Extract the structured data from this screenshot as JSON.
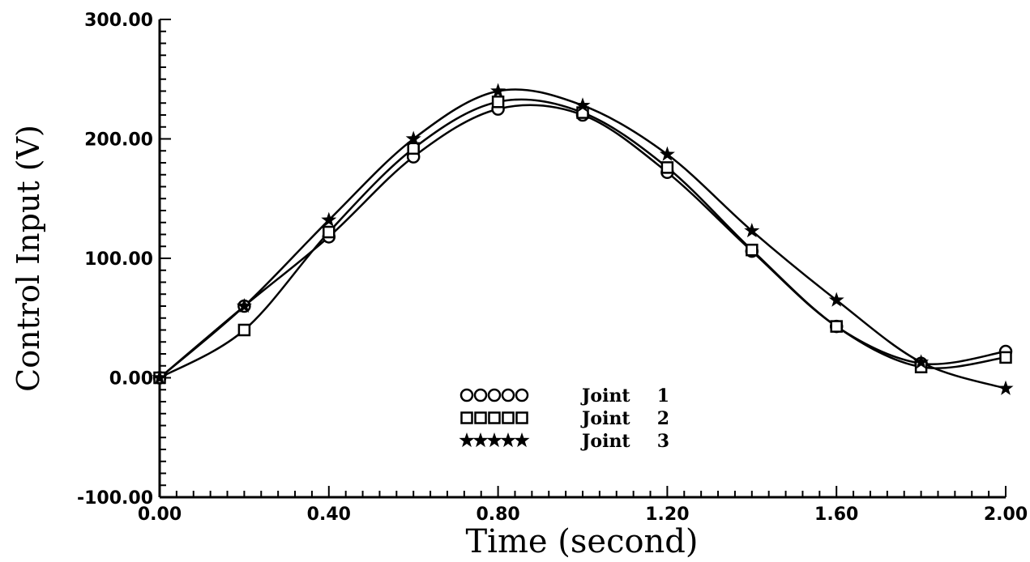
{
  "chart_data": {
    "type": "line",
    "title": "",
    "xlabel": "Time (second)",
    "ylabel": "Control Input (V)",
    "xlim": [
      0,
      2
    ],
    "ylim": [
      -100,
      300
    ],
    "x_ticks": [
      0,
      0.4,
      0.8,
      1.2,
      1.6,
      2.0
    ],
    "x_tick_labels": [
      "0.00",
      "0.40",
      "0.80",
      "1.20",
      "1.60",
      "2.00"
    ],
    "y_ticks": [
      -100,
      0,
      100,
      200,
      300
    ],
    "y_tick_labels": [
      "-100.00",
      "0.00",
      "100.00",
      "200.00",
      "300.00"
    ],
    "legend_position": "center-bottom",
    "grid": false,
    "series": [
      {
        "name": "Joint 1",
        "marker": "circle",
        "x": [
          0,
          0.2,
          0.4,
          0.6,
          0.8,
          1.0,
          1.2,
          1.4,
          1.6,
          1.8,
          2.0
        ],
        "y": [
          0,
          60,
          118,
          185,
          225,
          220,
          172,
          106,
          43,
          12,
          22
        ]
      },
      {
        "name": "Joint 2",
        "marker": "square",
        "x": [
          0,
          0.2,
          0.4,
          0.6,
          0.8,
          1.0,
          1.2,
          1.4,
          1.6,
          1.8,
          2.0
        ],
        "y": [
          0,
          40,
          122,
          192,
          231,
          222,
          176,
          107,
          43,
          9,
          17
        ]
      },
      {
        "name": "Joint 3",
        "marker": "star",
        "x": [
          0,
          0.2,
          0.4,
          0.6,
          0.8,
          1.0,
          1.2,
          1.4,
          1.6,
          1.8,
          2.0
        ],
        "y": [
          0,
          60,
          132,
          200,
          240,
          228,
          187,
          123,
          65,
          13,
          -9
        ]
      }
    ],
    "legend_entries": [
      {
        "symbols": "circle",
        "label": "Joint",
        "number": "1"
      },
      {
        "symbols": "square",
        "label": "Joint",
        "number": "2"
      },
      {
        "symbols": "star",
        "label": "Joint",
        "number": "3"
      }
    ]
  }
}
